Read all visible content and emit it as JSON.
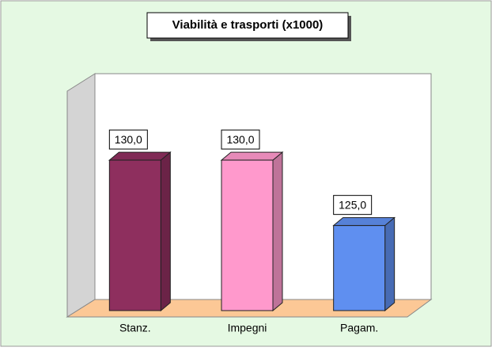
{
  "chart_data": {
    "type": "bar3d",
    "title": "Viabilità e trasporti (x1000)",
    "categories": [
      "Stanz.",
      "Impegni",
      "Pagam."
    ],
    "values": [
      130,
      130,
      125
    ],
    "value_labels": [
      "130,0",
      "130,0",
      "125,0"
    ],
    "colors": [
      "#8e2f5e",
      "#ff99cc",
      "#5f8ff0"
    ],
    "ylim": [
      118.5,
      136
    ]
  }
}
